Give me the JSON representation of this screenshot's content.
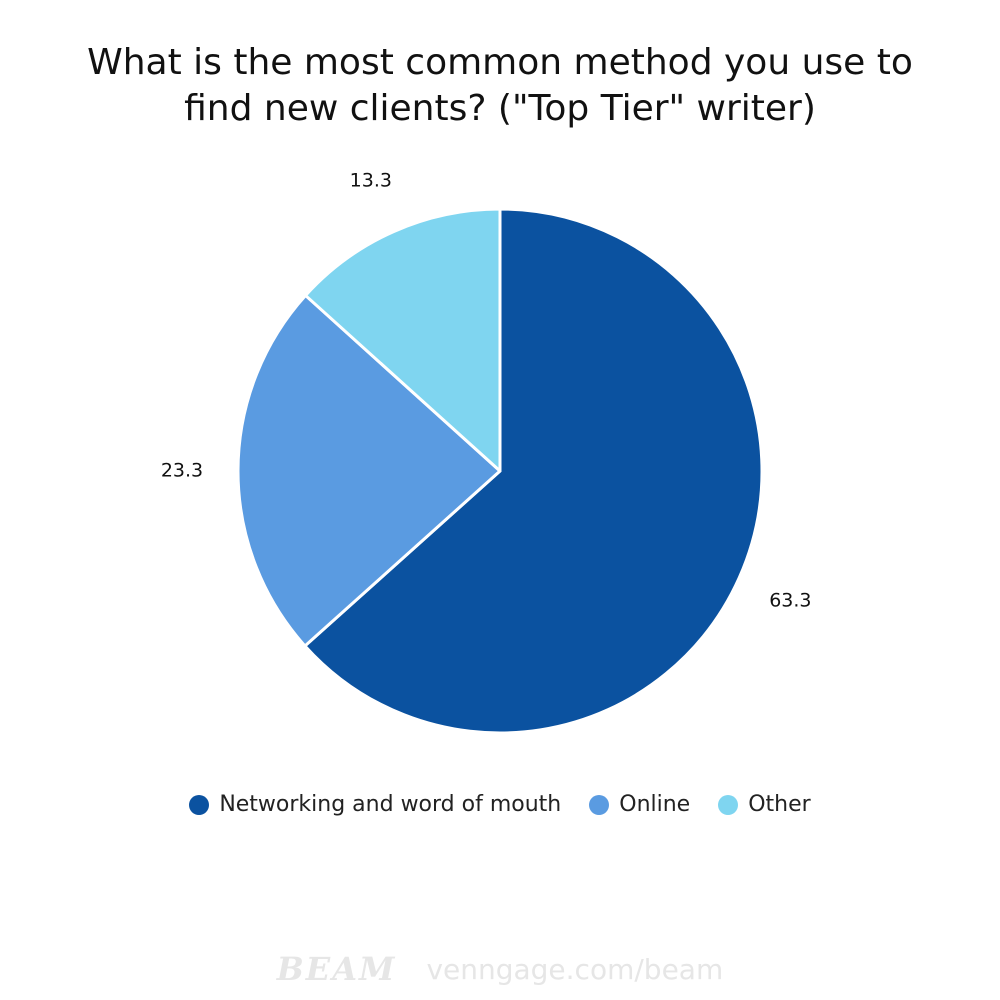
{
  "chart_data": {
    "type": "pie",
    "title_lines": [
      "What is the most common method you use to",
      "find new clients? (\"Top Tier\" writer)"
    ],
    "slices": [
      {
        "label": "Networking and word of mouth",
        "value": 63.3,
        "color": "#0B52A0"
      },
      {
        "label": "Online",
        "value": 23.3,
        "color": "#5A9BE1"
      },
      {
        "label": "Other",
        "value": 13.3,
        "color": "#7FD5F0"
      }
    ],
    "data_labels": [
      "63.3",
      "23.3",
      "13.3"
    ],
    "start_angle_deg": 0,
    "direction": "clockwise",
    "legend_position": "bottom"
  },
  "footer": {
    "logo_text": "BEAM",
    "url": "venngage.com/beam"
  }
}
